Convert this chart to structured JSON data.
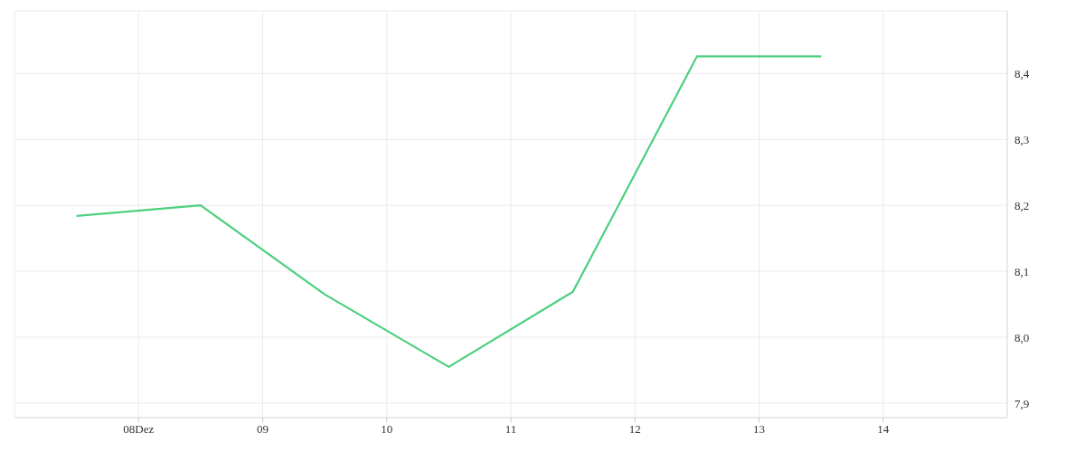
{
  "chart_data": {
    "type": "line",
    "x": [
      "--12-07T12:00",
      "--12-08T12:00",
      "--12-09T12:00",
      "--12-10T12:00",
      "--12-11T12:00",
      "--12-12T12:00",
      "--12-13T12:00"
    ],
    "series": [
      {
        "color": "#4cd07d",
        "values": [
          8.184,
          8.2,
          8.065,
          7.955,
          8.069,
          8.426,
          8.426
        ]
      }
    ],
    "xlim": [
      "--12-07",
      "--12-15"
    ],
    "xticks": [
      {
        "value": "--12-08",
        "label": "08Dez"
      },
      {
        "value": "--12-09",
        "label": "09"
      },
      {
        "value": "--12-10",
        "label": "10"
      },
      {
        "value": "--12-11",
        "label": "11"
      },
      {
        "value": "--12-12",
        "label": "12"
      },
      {
        "value": "--12-13",
        "label": "13"
      },
      {
        "value": "--12-14",
        "label": "14"
      }
    ],
    "ylim": [
      7.878,
      8.495
    ],
    "yticks": [
      {
        "value": 7.9,
        "label": "7,9"
      },
      {
        "value": 8.0,
        "label": "8,0"
      },
      {
        "value": 8.1,
        "label": "8,1"
      },
      {
        "value": 8.2,
        "label": "8,2"
      },
      {
        "value": 8.3,
        "label": "8,3"
      },
      {
        "value": 8.4,
        "label": "8,4"
      }
    ],
    "grid": true,
    "marker": "none",
    "line_style": "solid"
  }
}
